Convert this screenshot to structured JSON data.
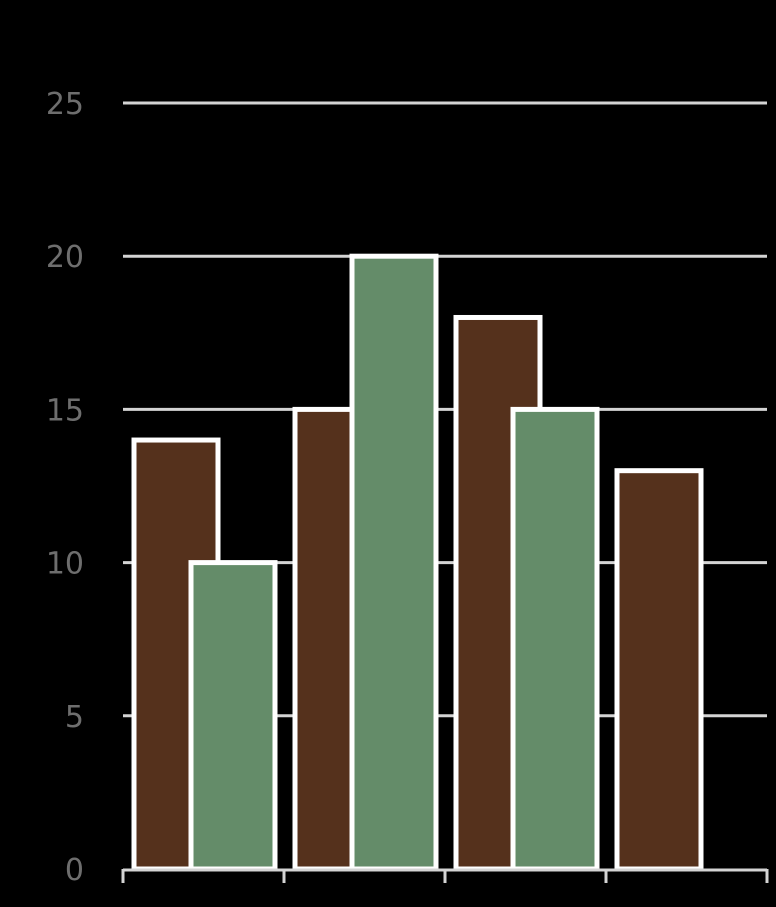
{
  "chart_data": {
    "type": "bar",
    "categories": [
      "",
      "",
      "",
      ""
    ],
    "series": [
      {
        "values": [
          14,
          15,
          18,
          13
        ],
        "color": "#55311c"
      },
      {
        "values": [
          10,
          20,
          15,
          null
        ],
        "color": "#648c69"
      }
    ],
    "y_ticks": [
      "0",
      "5",
      "10",
      "15",
      "20",
      "25"
    ],
    "ylim": [
      0,
      25
    ],
    "grid": true,
    "background": "#000000"
  }
}
